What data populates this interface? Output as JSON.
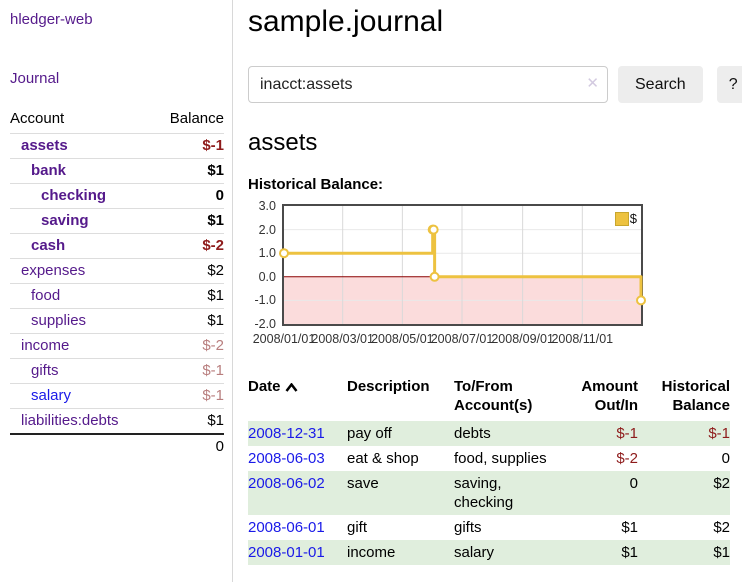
{
  "colors": {
    "purple": "#551a8b",
    "link_blue": "#1a1ae8",
    "neg_strong": "#8e1b1b",
    "neg_soft": "#b87e7e",
    "row_green": "#e0eedd",
    "button_bg": "#ededed",
    "sidebar_border": "#d8d8d8"
  },
  "app": {
    "title": "hledger-web"
  },
  "sidebar": {
    "journal_link": "Journal",
    "headers": {
      "account": "Account",
      "balance": "Balance"
    },
    "accounts": [
      {
        "name": "assets",
        "balance": "$-1"
      },
      {
        "name": "bank",
        "balance": "$1"
      },
      {
        "name": "checking",
        "balance": "0"
      },
      {
        "name": "saving",
        "balance": "$1"
      },
      {
        "name": "cash",
        "balance": "$-2"
      },
      {
        "name": "expenses",
        "balance": "$2"
      },
      {
        "name": "food",
        "balance": "$1"
      },
      {
        "name": "supplies",
        "balance": "$1"
      },
      {
        "name": "income",
        "balance": "$-2"
      },
      {
        "name": "gifts",
        "balance": "$-1"
      },
      {
        "name": "salary",
        "balance": "$-1"
      },
      {
        "name": "liabilities:debts",
        "balance": "$1"
      }
    ],
    "total": "0"
  },
  "main": {
    "title": "sample.journal",
    "search": {
      "value": "inacct:assets",
      "clear_icon": "✕",
      "button_label": "Search",
      "help_label": "?"
    },
    "account_heading": "assets",
    "register": {
      "headers": {
        "date": "Date",
        "description": "Description",
        "accounts": "To/From Account(s)",
        "amount": "Amount Out/In",
        "balance": "Historical Balance"
      },
      "rows": [
        {
          "date": "2008-12-31",
          "description": "pay off",
          "accounts": "debts",
          "amount": "$-1",
          "balance": "$-1"
        },
        {
          "date": "2008-06-03",
          "description": "eat & shop",
          "accounts": "food, supplies",
          "amount": "$-2",
          "balance": "0"
        },
        {
          "date": "2008-06-02",
          "description": "save",
          "accounts": "saving, checking",
          "amount": "0",
          "balance": "$2"
        },
        {
          "date": "2008-06-01",
          "description": "gift",
          "accounts": "gifts",
          "amount": "$1",
          "balance": "$2"
        },
        {
          "date": "2008-01-01",
          "description": "income",
          "accounts": "salary",
          "amount": "$1",
          "balance": "$1"
        }
      ]
    }
  },
  "chart_data": {
    "type": "line",
    "title": "Historical Balance:",
    "step": true,
    "x_range": [
      "2008-01-01",
      "2008-12-31"
    ],
    "x_ticks": [
      "2008/01/01",
      "2008/03/01",
      "2008/05/01",
      "2008/07/01",
      "2008/09/01",
      "2008/11/01"
    ],
    "y_ticks": [
      "3.0",
      "2.0",
      "1.0",
      "0.0",
      "-1.0",
      "-2.0"
    ],
    "ylim": [
      -2,
      3
    ],
    "series": [
      {
        "name": "$",
        "color": "#edc240",
        "points": [
          [
            "2008-01-01",
            1
          ],
          [
            "2008-06-01",
            2
          ],
          [
            "2008-06-02",
            2
          ],
          [
            "2008-06-03",
            0
          ],
          [
            "2008-12-31",
            -1
          ]
        ]
      }
    ],
    "legend_position": "top-right",
    "grid": true,
    "negative_fill": "#fbdcdc",
    "zero_line_color": "#8b0000"
  }
}
